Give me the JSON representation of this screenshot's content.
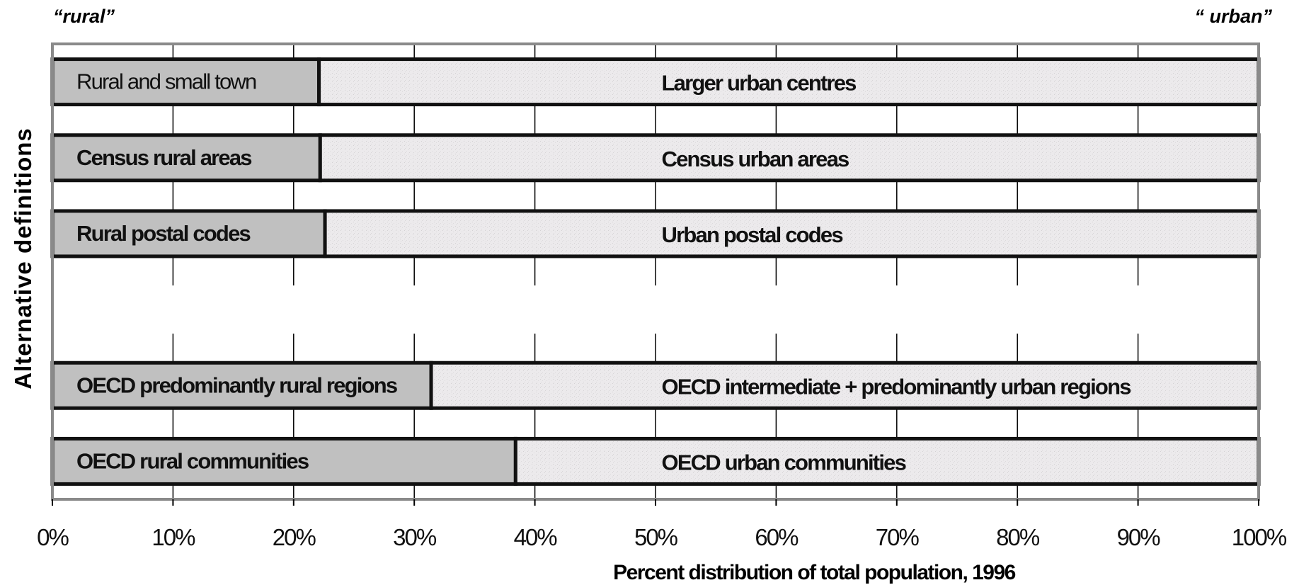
{
  "chart_data": {
    "type": "bar",
    "orientation": "horizontal",
    "stacked": true,
    "xlabel": "Percent distribution of total population, 1996",
    "ylabel": "Alternative definitions",
    "xlim": [
      0,
      100
    ],
    "x_ticks": [
      "0%",
      "10%",
      "20%",
      "30%",
      "40%",
      "50%",
      "60%",
      "70%",
      "80%",
      "90%",
      "100%"
    ],
    "corner_left": "“rural”",
    "corner_right": "“ urban”",
    "grid": true,
    "colors": {
      "rural": "#c0c0c0",
      "urban": "#eceaec",
      "border": "#111111",
      "grid": "#000000",
      "frame": "#8a8a8a"
    },
    "rows": [
      {
        "rural_label": "Rural and small town",
        "urban_label": "Larger urban centres",
        "rural_value": 22.1,
        "urban_value": 77.9
      },
      {
        "rural_label": "Census rural areas",
        "urban_label": "Census urban areas",
        "rural_value": 22.2,
        "urban_value": 77.8
      },
      {
        "rural_label": "Rural postal codes",
        "urban_label": "Urban postal codes",
        "rural_value": 22.6,
        "urban_value": 77.4
      },
      null,
      {
        "rural_label": "OECD predominantly rural regions",
        "urban_label": "OECD intermediate + predominantly urban regions",
        "rural_value": 31.4,
        "urban_value": 68.6
      },
      {
        "rural_label": "OECD rural communities",
        "urban_label": "OECD urban communities",
        "rural_value": 38.4,
        "urban_value": 61.6
      }
    ]
  }
}
